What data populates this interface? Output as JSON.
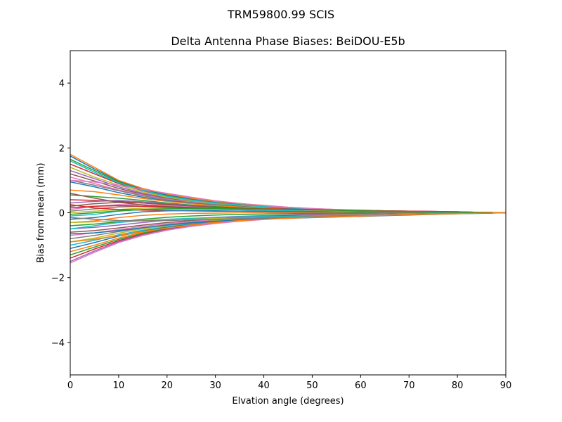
{
  "figure": {
    "suptitle": "TRM59800.99      SCIS"
  },
  "chart_data": {
    "type": "line",
    "title": "Delta Antenna Phase Biases: BeiDOU-E5b",
    "xlabel": "Elvation angle (degrees)",
    "ylabel": "Bias from mean (mm)",
    "xlim": [
      0,
      90
    ],
    "ylim": [
      -5,
      5
    ],
    "xticks": [
      0,
      10,
      20,
      30,
      40,
      50,
      60,
      70,
      80,
      90
    ],
    "xtick_labels": [
      "0",
      "10",
      "20",
      "30",
      "40",
      "50",
      "60",
      "70",
      "80",
      "90"
    ],
    "yticks": [
      -4,
      -2,
      0,
      2,
      4
    ],
    "ytick_labels": [
      "−4",
      "−2",
      "0",
      "2",
      "4"
    ],
    "grid": false,
    "legend": "none",
    "x": [
      0,
      5,
      10,
      15,
      20,
      25,
      30,
      35,
      40,
      45,
      50,
      55,
      60,
      65,
      70,
      75,
      80,
      85,
      90
    ],
    "series": [
      {
        "color": "#1f77b4",
        "values": [
          1.75,
          1.35,
          0.98,
          0.72,
          0.55,
          0.42,
          0.32,
          0.26,
          0.21,
          0.16,
          0.12,
          0.09,
          0.07,
          0.05,
          0.04,
          0.03,
          0.02,
          0.01,
          0.0
        ]
      },
      {
        "color": "#ff7f0e",
        "values": [
          1.8,
          1.4,
          1.0,
          0.75,
          0.58,
          0.45,
          0.35,
          0.28,
          0.23,
          0.17,
          0.13,
          0.1,
          0.08,
          0.06,
          0.05,
          0.04,
          0.03,
          0.01,
          0.0
        ]
      },
      {
        "color": "#2ca02c",
        "values": [
          1.65,
          1.3,
          0.95,
          0.7,
          0.52,
          0.4,
          0.31,
          0.25,
          0.2,
          0.15,
          0.11,
          0.08,
          0.06,
          0.05,
          0.04,
          0.03,
          0.02,
          0.01,
          0.0
        ]
      },
      {
        "color": "#d62728",
        "values": [
          1.5,
          1.2,
          0.9,
          0.68,
          0.5,
          0.38,
          0.3,
          0.24,
          0.19,
          0.14,
          0.1,
          0.08,
          0.06,
          0.05,
          0.04,
          0.03,
          0.02,
          0.01,
          0.0
        ]
      },
      {
        "color": "#9467bd",
        "values": [
          1.3,
          1.05,
          0.8,
          0.6,
          0.46,
          0.36,
          0.28,
          0.22,
          0.18,
          0.14,
          0.1,
          0.08,
          0.06,
          0.05,
          0.04,
          0.03,
          0.02,
          0.01,
          0.0
        ]
      },
      {
        "color": "#8c564b",
        "values": [
          1.2,
          0.98,
          0.75,
          0.57,
          0.44,
          0.34,
          0.27,
          0.22,
          0.17,
          0.13,
          0.1,
          0.08,
          0.06,
          0.05,
          0.04,
          0.03,
          0.02,
          0.01,
          0.0
        ]
      },
      {
        "color": "#e377c2",
        "values": [
          1.1,
          0.9,
          0.7,
          0.55,
          0.42,
          0.33,
          0.26,
          0.21,
          0.17,
          0.13,
          0.1,
          0.07,
          0.06,
          0.04,
          0.03,
          0.02,
          0.02,
          0.01,
          0.0
        ]
      },
      {
        "color": "#7f7f7f",
        "values": [
          1.0,
          0.85,
          0.68,
          0.52,
          0.4,
          0.31,
          0.25,
          0.2,
          0.16,
          0.12,
          0.09,
          0.07,
          0.05,
          0.04,
          0.03,
          0.02,
          0.02,
          0.01,
          0.0
        ]
      },
      {
        "color": "#bcbd22",
        "values": [
          1.4,
          1.1,
          0.85,
          0.64,
          0.48,
          0.37,
          0.29,
          0.23,
          0.18,
          0.14,
          0.1,
          0.08,
          0.06,
          0.05,
          0.04,
          0.03,
          0.02,
          0.01,
          0.0
        ]
      },
      {
        "color": "#17becf",
        "values": [
          1.6,
          1.25,
          0.92,
          0.69,
          0.51,
          0.39,
          0.3,
          0.24,
          0.19,
          0.15,
          0.11,
          0.08,
          0.06,
          0.05,
          0.04,
          0.03,
          0.02,
          0.01,
          0.0
        ]
      },
      {
        "color": "#1f77b4",
        "values": [
          0.95,
          0.8,
          0.62,
          0.48,
          0.37,
          0.29,
          0.23,
          0.19,
          0.15,
          0.12,
          0.09,
          0.07,
          0.05,
          0.04,
          0.03,
          0.02,
          0.02,
          0.01,
          0.0
        ]
      },
      {
        "color": "#ff7f0e",
        "values": [
          0.7,
          0.65,
          0.55,
          0.44,
          0.35,
          0.28,
          0.22,
          0.18,
          0.14,
          0.11,
          0.08,
          0.06,
          0.05,
          0.04,
          0.03,
          0.02,
          0.01,
          0.01,
          0.0
        ]
      },
      {
        "color": "#2ca02c",
        "values": [
          0.55,
          0.5,
          0.45,
          0.38,
          0.3,
          0.24,
          0.19,
          0.15,
          0.12,
          0.09,
          0.07,
          0.05,
          0.04,
          0.03,
          0.02,
          0.02,
          0.01,
          0.01,
          0.0
        ]
      },
      {
        "color": "#d62728",
        "values": [
          0.4,
          0.38,
          0.35,
          0.3,
          0.25,
          0.2,
          0.16,
          0.13,
          0.1,
          0.08,
          0.06,
          0.05,
          0.04,
          0.03,
          0.02,
          0.01,
          0.01,
          0.0,
          0.0
        ]
      },
      {
        "color": "#9467bd",
        "values": [
          0.3,
          0.35,
          0.38,
          0.34,
          0.28,
          0.22,
          0.17,
          0.14,
          0.11,
          0.09,
          0.07,
          0.05,
          0.04,
          0.03,
          0.02,
          0.02,
          0.01,
          0.01,
          0.0
        ]
      },
      {
        "color": "#8c564b",
        "values": [
          0.2,
          0.28,
          0.32,
          0.3,
          0.26,
          0.21,
          0.17,
          0.14,
          0.11,
          0.08,
          0.06,
          0.05,
          0.04,
          0.03,
          0.02,
          0.01,
          0.01,
          0.0,
          0.0
        ]
      },
      {
        "color": "#e377c2",
        "values": [
          0.1,
          0.2,
          0.25,
          0.25,
          0.22,
          0.18,
          0.15,
          0.12,
          0.1,
          0.08,
          0.06,
          0.04,
          0.03,
          0.02,
          0.02,
          0.01,
          0.01,
          0.0,
          0.0
        ]
      },
      {
        "color": "#7f7f7f",
        "values": [
          0.05,
          0.12,
          0.18,
          0.2,
          0.19,
          0.16,
          0.13,
          0.11,
          0.09,
          0.07,
          0.05,
          0.04,
          0.03,
          0.02,
          0.02,
          0.01,
          0.01,
          0.0,
          0.0
        ]
      },
      {
        "color": "#bcbd22",
        "values": [
          0.0,
          0.05,
          0.1,
          0.14,
          0.15,
          0.14,
          0.12,
          0.1,
          0.08,
          0.06,
          0.05,
          0.04,
          0.03,
          0.02,
          0.01,
          0.01,
          0.01,
          0.0,
          0.0
        ]
      },
      {
        "color": "#17becf",
        "values": [
          -0.1,
          -0.05,
          0.05,
          0.1,
          0.12,
          0.12,
          0.1,
          0.09,
          0.07,
          0.06,
          0.04,
          0.03,
          0.03,
          0.02,
          0.01,
          0.01,
          0.0,
          0.0,
          0.0
        ]
      },
      {
        "color": "#d62728",
        "values": [
          0.25,
          0.15,
          0.1,
          0.08,
          0.07,
          0.06,
          0.05,
          0.05,
          0.04,
          0.03,
          0.03,
          0.02,
          0.02,
          0.01,
          0.01,
          0.01,
          0.0,
          0.0,
          0.0
        ]
      },
      {
        "color": "#1f77b4",
        "values": [
          -0.2,
          -0.15,
          -0.05,
          0.03,
          0.06,
          0.07,
          0.06,
          0.05,
          0.04,
          0.03,
          0.03,
          0.02,
          0.02,
          0.01,
          0.01,
          0.0,
          0.0,
          0.0,
          0.0
        ]
      },
      {
        "color": "#ff7f0e",
        "values": [
          -0.3,
          -0.25,
          -0.15,
          -0.08,
          -0.04,
          -0.02,
          -0.01,
          0.0,
          0.0,
          0.0,
          0.0,
          0.0,
          0.0,
          0.0,
          0.0,
          0.0,
          0.0,
          0.0,
          0.0
        ]
      },
      {
        "color": "#2ca02c",
        "values": [
          -0.4,
          -0.35,
          -0.28,
          -0.2,
          -0.14,
          -0.1,
          -0.07,
          -0.05,
          -0.04,
          -0.03,
          -0.02,
          -0.02,
          -0.01,
          -0.01,
          -0.01,
          0.0,
          0.0,
          0.0,
          0.0
        ]
      },
      {
        "color": "#9467bd",
        "values": [
          -0.5,
          -0.45,
          -0.38,
          -0.3,
          -0.23,
          -0.18,
          -0.14,
          -0.11,
          -0.09,
          -0.07,
          -0.05,
          -0.04,
          -0.03,
          -0.02,
          -0.02,
          -0.01,
          -0.01,
          0.0,
          0.0
        ]
      },
      {
        "color": "#8c564b",
        "values": [
          -0.6,
          -0.55,
          -0.47,
          -0.38,
          -0.3,
          -0.24,
          -0.19,
          -0.15,
          -0.12,
          -0.09,
          -0.07,
          -0.05,
          -0.04,
          -0.03,
          -0.02,
          -0.02,
          -0.01,
          -0.01,
          0.0
        ]
      },
      {
        "color": "#e377c2",
        "values": [
          -0.7,
          -0.62,
          -0.52,
          -0.42,
          -0.34,
          -0.27,
          -0.21,
          -0.17,
          -0.14,
          -0.11,
          -0.08,
          -0.06,
          -0.05,
          -0.04,
          -0.03,
          -0.02,
          -0.01,
          -0.01,
          0.0
        ]
      },
      {
        "color": "#7f7f7f",
        "values": [
          -0.8,
          -0.7,
          -0.58,
          -0.47,
          -0.37,
          -0.3,
          -0.24,
          -0.19,
          -0.15,
          -0.12,
          -0.09,
          -0.07,
          -0.05,
          -0.04,
          -0.03,
          -0.02,
          -0.01,
          -0.01,
          0.0
        ]
      },
      {
        "color": "#bcbd22",
        "values": [
          -0.9,
          -0.78,
          -0.63,
          -0.5,
          -0.4,
          -0.32,
          -0.25,
          -0.2,
          -0.16,
          -0.13,
          -0.1,
          -0.07,
          -0.06,
          -0.04,
          -0.03,
          -0.02,
          -0.02,
          -0.01,
          0.0
        ]
      },
      {
        "color": "#17becf",
        "values": [
          -1.0,
          -0.85,
          -0.68,
          -0.54,
          -0.43,
          -0.34,
          -0.27,
          -0.22,
          -0.17,
          -0.13,
          -0.1,
          -0.08,
          -0.06,
          -0.05,
          -0.03,
          -0.02,
          -0.02,
          -0.01,
          0.0
        ]
      },
      {
        "color": "#1f77b4",
        "values": [
          -1.1,
          -0.92,
          -0.72,
          -0.57,
          -0.45,
          -0.36,
          -0.28,
          -0.23,
          -0.18,
          -0.14,
          -0.11,
          -0.08,
          -0.06,
          -0.05,
          -0.04,
          -0.03,
          -0.02,
          -0.01,
          0.0
        ]
      },
      {
        "color": "#ff7f0e",
        "values": [
          -1.2,
          -1.0,
          -0.78,
          -0.6,
          -0.47,
          -0.37,
          -0.29,
          -0.23,
          -0.18,
          -0.14,
          -0.11,
          -0.08,
          -0.06,
          -0.05,
          -0.04,
          -0.03,
          -0.02,
          -0.01,
          0.0
        ]
      },
      {
        "color": "#2ca02c",
        "values": [
          -1.3,
          -1.06,
          -0.82,
          -0.63,
          -0.49,
          -0.38,
          -0.3,
          -0.24,
          -0.19,
          -0.15,
          -0.11,
          -0.09,
          -0.07,
          -0.05,
          -0.04,
          -0.03,
          -0.02,
          -0.01,
          0.0
        ]
      },
      {
        "color": "#d62728",
        "values": [
          -1.4,
          -1.12,
          -0.86,
          -0.66,
          -0.51,
          -0.4,
          -0.31,
          -0.25,
          -0.2,
          -0.15,
          -0.12,
          -0.09,
          -0.07,
          -0.05,
          -0.04,
          -0.03,
          -0.02,
          -0.01,
          0.0
        ]
      },
      {
        "color": "#9467bd",
        "values": [
          -1.5,
          -1.18,
          -0.89,
          -0.68,
          -0.52,
          -0.41,
          -0.32,
          -0.25,
          -0.2,
          -0.16,
          -0.12,
          -0.09,
          -0.07,
          -0.05,
          -0.04,
          -0.03,
          -0.02,
          -0.01,
          0.0
        ]
      },
      {
        "color": "#e377c2",
        "values": [
          -1.55,
          -1.22,
          -0.92,
          -0.7,
          -0.54,
          -0.42,
          -0.33,
          -0.26,
          -0.21,
          -0.16,
          -0.12,
          -0.09,
          -0.07,
          -0.05,
          -0.04,
          -0.03,
          -0.02,
          -0.01,
          0.0
        ]
      },
      {
        "color": "#17becf",
        "values": [
          -0.5,
          -0.4,
          -0.3,
          -0.24,
          -0.2,
          -0.17,
          -0.15,
          -0.13,
          -0.12,
          -0.11,
          -0.1,
          -0.09,
          -0.08,
          -0.06,
          -0.05,
          -0.04,
          -0.02,
          -0.01,
          0.0
        ]
      },
      {
        "color": "#bcbd22",
        "values": [
          -0.3,
          -0.28,
          -0.26,
          -0.24,
          -0.22,
          -0.2,
          -0.18,
          -0.17,
          -0.16,
          -0.14,
          -0.12,
          -0.1,
          -0.08,
          -0.06,
          -0.05,
          -0.03,
          -0.02,
          -0.01,
          0.0
        ]
      },
      {
        "color": "#7f7f7f",
        "values": [
          -0.15,
          -0.2,
          -0.24,
          -0.25,
          -0.24,
          -0.22,
          -0.2,
          -0.18,
          -0.16,
          -0.14,
          -0.12,
          -0.1,
          -0.08,
          -0.06,
          -0.05,
          -0.03,
          -0.02,
          -0.01,
          0.0
        ]
      },
      {
        "color": "#8c564b",
        "values": [
          0.6,
          0.45,
          0.32,
          0.24,
          0.19,
          0.16,
          0.14,
          0.12,
          0.11,
          0.1,
          0.09,
          0.08,
          0.07,
          0.06,
          0.05,
          0.04,
          0.03,
          0.01,
          0.0
        ]
      },
      {
        "color": "#e377c2",
        "values": [
          1.0,
          0.95,
          0.85,
          0.72,
          0.6,
          0.48,
          0.37,
          0.29,
          0.22,
          0.17,
          0.13,
          0.1,
          0.08,
          0.06,
          0.05,
          0.04,
          0.03,
          0.01,
          0.0
        ]
      },
      {
        "color": "#d62728",
        "values": [
          0.15,
          0.2,
          0.22,
          0.2,
          0.17,
          0.15,
          0.14,
          0.13,
          0.12,
          0.11,
          0.1,
          0.08,
          0.07,
          0.06,
          0.05,
          0.04,
          0.03,
          0.01,
          0.0
        ]
      },
      {
        "color": "#2ca02c",
        "values": [
          -0.05,
          0.0,
          0.06,
          0.1,
          0.12,
          0.13,
          0.13,
          0.12,
          0.11,
          0.1,
          0.09,
          0.08,
          0.06,
          0.05,
          0.04,
          0.03,
          0.02,
          0.01,
          0.0
        ]
      },
      {
        "color": "#1f77b4",
        "values": [
          -0.65,
          -0.62,
          -0.55,
          -0.46,
          -0.38,
          -0.31,
          -0.26,
          -0.22,
          -0.19,
          -0.17,
          -0.15,
          -0.13,
          -0.11,
          -0.09,
          -0.07,
          -0.05,
          -0.03,
          -0.02,
          0.0
        ]
      },
      {
        "color": "#ff7f0e",
        "values": [
          -0.9,
          -0.82,
          -0.7,
          -0.58,
          -0.47,
          -0.38,
          -0.3,
          -0.24,
          -0.2,
          -0.17,
          -0.14,
          -0.12,
          -0.1,
          -0.08,
          -0.06,
          -0.04,
          -0.03,
          -0.01,
          0.0
        ]
      }
    ]
  }
}
